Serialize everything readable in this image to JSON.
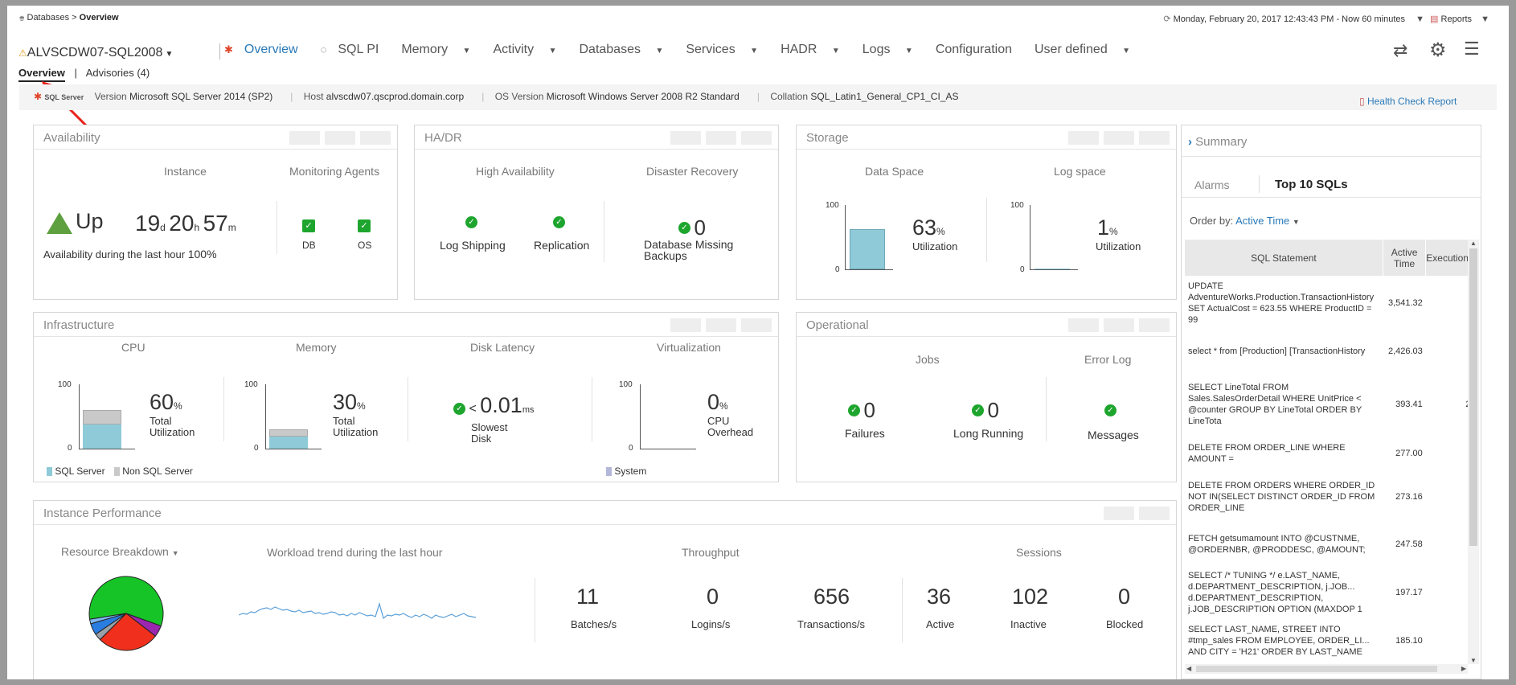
{
  "breadcrumb": {
    "root": "Databases",
    "sep": ">",
    "current": "Overview"
  },
  "time_range": {
    "text": "Monday, February 20, 2017 12:43:43 PM - Now 60 minutes"
  },
  "reports_label": "Reports",
  "instance": {
    "name": "ALVSCDW07-SQL2008"
  },
  "nav": {
    "overview": "Overview",
    "sql_pi": "SQL PI",
    "memory": "Memory",
    "activity": "Activity",
    "databases": "Databases",
    "services": "Services",
    "hadr": "HADR",
    "logs": "Logs",
    "configuration": "Configuration",
    "user_defined": "User defined"
  },
  "subtabs": {
    "overview": "Overview",
    "advisories": "Advisories (4)"
  },
  "infobar": {
    "logo": "SQL Server",
    "version_label": "Version",
    "version": "Microsoft SQL Server 2014 (SP2)",
    "host_label": "Host",
    "host": "alvscdw07.qscprod.domain.corp",
    "os_label": "OS Version",
    "os": "Microsoft Windows Server 2008 R2 Standard",
    "collation_label": "Collation",
    "collation": "SQL_Latin1_General_CP1_CI_AS",
    "health_report": "Health Check Report"
  },
  "availability": {
    "title": "Availability",
    "instance_label": "Instance",
    "agents_label": "Monitoring Agents",
    "status": "Up",
    "uptime_d": "19",
    "uptime_h": "20",
    "uptime_m": "57",
    "unit_d": "d",
    "unit_h": "h",
    "unit_m": "m",
    "last_hour_label": "Availability during the last hour",
    "last_hour_value": "100%",
    "agent_db": "DB",
    "agent_os": "OS"
  },
  "hadr": {
    "title": "HA/DR",
    "ha_label": "High Availability",
    "dr_label": "Disaster Recovery",
    "log_shipping": "Log Shipping",
    "replication": "Replication",
    "missing_count": "0",
    "missing_label": "Database Missing Backups"
  },
  "storage": {
    "title": "Storage",
    "data_label": "Data Space",
    "log_label": "Log space",
    "data_pct": "63",
    "data_pct_value": 63,
    "log_pct": "1",
    "log_pct_value": 1,
    "unit": "%",
    "util_label": "Utilization",
    "ax_max": "100",
    "ax_min": "0"
  },
  "summary": {
    "title": "Summary",
    "tab_alarms": "Alarms",
    "tab_top": "Top 10 SQLs",
    "order_by_label": "Order by:",
    "order_by_value": "Active Time",
    "col_stmt": "SQL Statement",
    "col_active": "Active Time",
    "col_exec": "Executions",
    "rows": [
      {
        "stmt": "UPDATE AdventureWorks.Production.TransactionHistory SET ActualCost = 623.55 WHERE ProductID = 99",
        "active": "3,541.32",
        "exec": ""
      },
      {
        "stmt": "select * from [Production] [TransactionHistory",
        "active": "2,426.03",
        "exec": ""
      },
      {
        "stmt": "SELECT LineTotal FROM Sales.SalesOrderDetail WHERE UnitPrice < @counter GROUP BY LineTotal ORDER BY LineTota",
        "active": "393.41",
        "exec": "2"
      },
      {
        "stmt": "DELETE FROM ORDER_LINE WHERE AMOUNT =",
        "active": "277.00",
        "exec": ""
      },
      {
        "stmt": "DELETE FROM ORDERS WHERE ORDER_ID NOT IN(SELECT DISTINCT ORDER_ID FROM ORDER_LINE",
        "active": "273.16",
        "exec": ""
      },
      {
        "stmt": "FETCH getsumamount INTO @CUSTNME, @ORDERNBR, @PRODDESC, @AMOUNT;",
        "active": "247.58",
        "exec": ""
      },
      {
        "stmt": "SELECT /* TUNING */ e.LAST_NAME, d.DEPARTMENT_DESCRIPTION, j.JOB... d.DEPARTMENT_DESCRIPTION, j.JOB_DESCRIPTION OPTION (MAXDOP 1",
        "active": "197.17",
        "exec": ""
      },
      {
        "stmt": "SELECT LAST_NAME, STREET INTO #tmp_sales FROM EMPLOYEE, ORDER_LI... AND CITY = 'H21' ORDER BY LAST_NAME",
        "active": "185.10",
        "exec": ""
      }
    ]
  },
  "infrastructure": {
    "title": "Infrastructure",
    "cpu_label": "CPU",
    "mem_label": "Memory",
    "disk_label": "Disk Latency",
    "virt_label": "Virtualization",
    "cpu_pct": "60",
    "cpu_sql_pct": 38,
    "cpu_nonsql_pct": 22,
    "mem_pct": "30",
    "mem_sql_pct": 19,
    "mem_nonsql_pct": 11,
    "virt_pct": "0",
    "unit": "%",
    "total_util": "Total Utilization",
    "disk_prefix": "<",
    "disk_value": "0.01",
    "disk_unit": "ms",
    "disk_caption": "Slowest Disk",
    "cpu_overhead": "CPU Overhead",
    "legend_sql": "SQL Server",
    "legend_nonsql": "Non SQL Server",
    "legend_system": "System",
    "ax_max": "100",
    "ax_min": "0"
  },
  "operational": {
    "title": "Operational",
    "jobs_label": "Jobs",
    "errlog_label": "Error Log",
    "failures": "0",
    "failures_label": "Failures",
    "long_running": "0",
    "long_running_label": "Long Running",
    "messages_label": "Messages"
  },
  "perf": {
    "title": "Instance Performance",
    "resource_label": "Resource Breakdown",
    "workload_label": "Workload trend during the last hour",
    "throughput_label": "Throughput",
    "sessions_label": "Sessions",
    "batches": "11",
    "batches_label": "Batches/s",
    "logins": "0",
    "logins_label": "Logins/s",
    "transactions": "656",
    "transactions_label": "Transactions/s",
    "active": "36",
    "active_label": "Active",
    "inactive": "102",
    "inactive_label": "Inactive",
    "blocked": "0",
    "blocked_label": "Blocked"
  },
  "colors": {
    "accent": "#2a7ab8",
    "ok_green": "#1ea52e",
    "bar_sql": "#8ecad8",
    "bar_nonsql": "#c9c9c9",
    "up_triangle": "#5ea03f"
  },
  "pie": [
    {
      "name": "slice-green",
      "value": 58,
      "color": "#17c428"
    },
    {
      "name": "slice-purple",
      "value": 5,
      "color": "#9b27b0"
    },
    {
      "name": "slice-red",
      "value": 27,
      "color": "#f0301c"
    },
    {
      "name": "slice-gray",
      "value": 3,
      "color": "#9aa0a8"
    },
    {
      "name": "slice-blue",
      "value": 5,
      "color": "#2a7de0"
    },
    {
      "name": "slice-lightblue",
      "value": 2,
      "color": "#7fb8f0"
    }
  ],
  "icons": [
    "stack-icon",
    "clock-icon",
    "report-icon",
    "warning-icon",
    "logo-icon",
    "sqlpi-icon",
    "refresh-icon",
    "gear-icon",
    "menu-icon",
    "check-icon",
    "chevron-right-icon",
    "document-icon"
  ]
}
